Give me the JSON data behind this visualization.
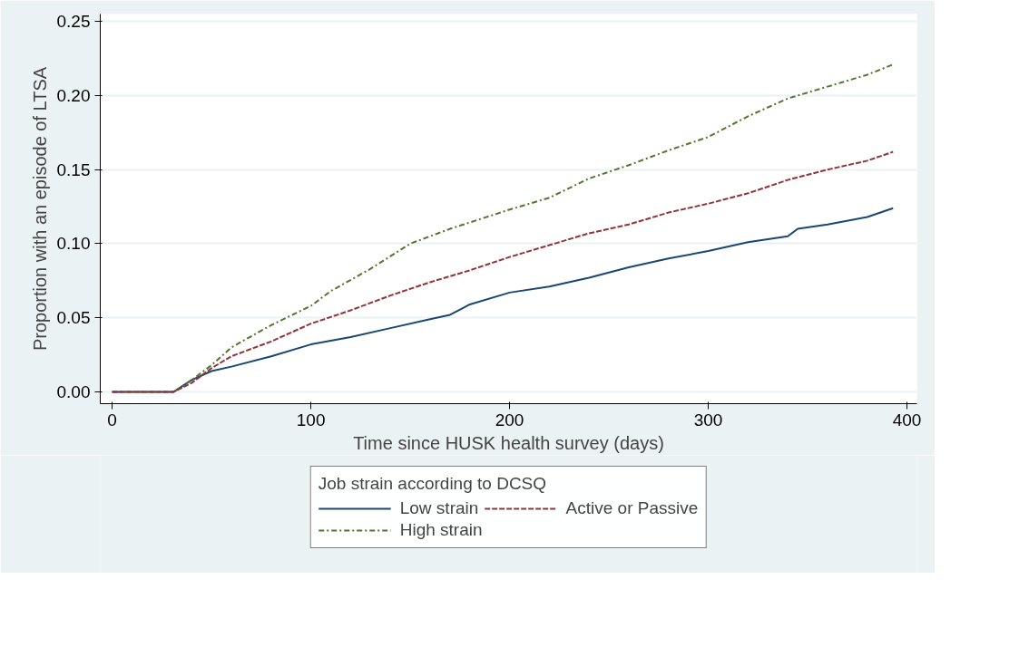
{
  "chart_data": {
    "type": "line",
    "xlabel": "Time since HUSK health survey (days)",
    "ylabel": "Proportion with an episode of LTSA",
    "legend_title": "Job strain according to DCSQ",
    "xlim": [
      -6,
      405
    ],
    "xticks": [
      0,
      100,
      200,
      300,
      400
    ],
    "ylim": [
      -0.008,
      0.255
    ],
    "yticks": [
      {
        "value": 0,
        "label": "0.00"
      },
      {
        "value": 0.05,
        "label": "0.05"
      },
      {
        "value": 0.1,
        "label": "0.10"
      },
      {
        "value": 0.15,
        "label": "0.15"
      },
      {
        "value": 0.2,
        "label": "0.20"
      },
      {
        "value": 0.25,
        "label": "0.25"
      }
    ],
    "grid": "y",
    "legend": "bottom",
    "marker": "none",
    "series": [
      {
        "name": "Low strain",
        "color": "#1a476f",
        "line_style": "solid",
        "x": [
          0,
          31,
          40,
          50,
          60,
          80,
          100,
          120,
          140,
          160,
          170,
          180,
          200,
          220,
          240,
          260,
          280,
          300,
          320,
          340,
          345,
          360,
          380,
          393
        ],
        "values": [
          0,
          0,
          0.008,
          0.014,
          0.017,
          0.024,
          0.032,
          0.037,
          0.043,
          0.049,
          0.052,
          0.059,
          0.067,
          0.071,
          0.077,
          0.084,
          0.09,
          0.095,
          0.101,
          0.105,
          0.11,
          0.113,
          0.118,
          0.124
        ]
      },
      {
        "name": "Active or Passive",
        "color": "#90353b",
        "line_style": "dashed",
        "x": [
          0,
          31,
          40,
          50,
          60,
          80,
          100,
          120,
          140,
          160,
          180,
          200,
          220,
          240,
          260,
          280,
          300,
          320,
          340,
          360,
          380,
          393
        ],
        "values": [
          0,
          0,
          0.006,
          0.016,
          0.024,
          0.034,
          0.046,
          0.055,
          0.065,
          0.074,
          0.082,
          0.091,
          0.099,
          0.107,
          0.113,
          0.121,
          0.127,
          0.134,
          0.143,
          0.15,
          0.156,
          0.162
        ]
      },
      {
        "name": "High strain",
        "color": "#55752f",
        "line_style": "dashdot",
        "x": [
          0,
          31,
          40,
          50,
          60,
          80,
          100,
          110,
          130,
          150,
          170,
          200,
          220,
          240,
          260,
          280,
          300,
          320,
          340,
          360,
          380,
          393
        ],
        "values": [
          0,
          0,
          0.008,
          0.018,
          0.03,
          0.045,
          0.058,
          0.068,
          0.083,
          0.1,
          0.11,
          0.123,
          0.131,
          0.144,
          0.153,
          0.163,
          0.172,
          0.186,
          0.198,
          0.206,
          0.214,
          0.221
        ]
      }
    ]
  }
}
